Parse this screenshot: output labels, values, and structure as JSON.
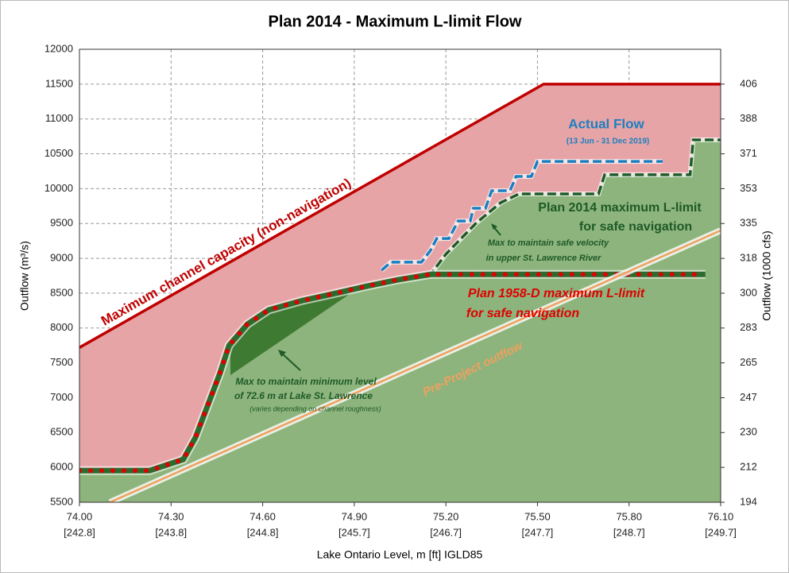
{
  "chart_data": {
    "type": "line",
    "title": "Plan 2014 - Maximum L-limit Flow",
    "x_label": "Lake Ontario Level, m [ft] IGLD85",
    "y_label": "Outflow (m³/s)",
    "y2_label": "Outflow (1000 cfs)",
    "xlim": [
      74.0,
      76.1
    ],
    "ylim": [
      5500,
      12000
    ],
    "y2lim": [
      194.23,
      423.78
    ],
    "xticks": [
      {
        "value": 74.0,
        "label": "74.00"
      },
      {
        "value": 74.3,
        "label": "74.30"
      },
      {
        "value": 74.6,
        "label": "74.60"
      },
      {
        "value": 74.9,
        "label": "74.90"
      },
      {
        "value": 75.2,
        "label": "75.20"
      },
      {
        "value": 75.5,
        "label": "75.50"
      },
      {
        "value": 75.8,
        "label": "75.80"
      },
      {
        "value": 76.1,
        "label": "76.10"
      }
    ],
    "xticks_ft": [
      "[242.8]",
      "[243.8]",
      "[244.8]",
      "[245.7]",
      "[246.7]",
      "[247.7]",
      "[248.7]",
      "[249.7]"
    ],
    "yticks": [
      5500,
      6000,
      6500,
      7000,
      7500,
      8000,
      8500,
      9000,
      9500,
      10000,
      10500,
      11000,
      11500,
      12000
    ],
    "y2ticks": [
      {
        "value": 194.23,
        "label": "194"
      },
      {
        "value": 211.89,
        "label": "212"
      },
      {
        "value": 229.55,
        "label": "230"
      },
      {
        "value": 247.2,
        "label": "247"
      },
      {
        "value": 264.86,
        "label": "265"
      },
      {
        "value": 282.52,
        "label": "283"
      },
      {
        "value": 300.17,
        "label": "300"
      },
      {
        "value": 317.83,
        "label": "318"
      },
      {
        "value": 335.49,
        "label": "335"
      },
      {
        "value": 353.15,
        "label": "353"
      },
      {
        "value": 370.8,
        "label": "371"
      },
      {
        "value": 388.46,
        "label": "388"
      },
      {
        "value": 406.12,
        "label": "406"
      }
    ],
    "grid": true,
    "series": [
      {
        "name": "Maximum channel capacity (non-navigation)",
        "color": "#c00000",
        "fill": "#e6a4a6",
        "style": "solid",
        "x": [
          74.0,
          75.52,
          76.1
        ],
        "values": [
          7720,
          11500,
          11500
        ]
      },
      {
        "name": "Plan 2014 maximum L-limit",
        "color": "#1e5a28",
        "fill": "#8db47c",
        "style": "dashed",
        "x": [
          74.0,
          74.23,
          74.34,
          74.38,
          74.42,
          74.46,
          74.49,
          74.55,
          74.62,
          74.73,
          74.83,
          74.94,
          75.04,
          75.15,
          75.2,
          75.3,
          75.38,
          75.44,
          75.7,
          75.72,
          76.0,
          76.01,
          76.1
        ],
        "values": [
          5955,
          5955,
          6115,
          6430,
          6890,
          7350,
          7750,
          8055,
          8260,
          8395,
          8490,
          8600,
          8690,
          8770,
          9060,
          9510,
          9800,
          9925,
          9925,
          10200,
          10200,
          10700,
          10700
        ]
      },
      {
        "name": "Plan 1958-D maximum L-limit",
        "color": "#e00000",
        "fill": "#2d6a2e",
        "style": "dotted",
        "x": [
          74.0,
          74.23,
          74.34,
          74.38,
          74.42,
          74.46,
          74.49,
          74.55,
          74.62,
          74.73,
          74.83,
          74.94,
          75.04,
          75.15,
          76.05
        ],
        "values": [
          5955,
          5955,
          6115,
          6430,
          6890,
          7350,
          7750,
          8055,
          8260,
          8395,
          8490,
          8600,
          8690,
          8770,
          8770
        ]
      },
      {
        "name": "Actual Flow",
        "color": "#1a7fc1",
        "style": "dashed",
        "x": [
          74.99,
          75.02,
          75.12,
          75.15,
          75.17,
          75.21,
          75.24,
          75.28,
          75.29,
          75.33,
          75.35,
          75.41,
          75.43,
          75.48,
          75.5,
          75.91
        ],
        "values": [
          8830,
          8945,
          8945,
          9115,
          9285,
          9285,
          9535,
          9535,
          9720,
          9720,
          9970,
          9970,
          10175,
          10175,
          10390,
          10390
        ]
      },
      {
        "name": "Pre-Project outflow",
        "color": "#f0a060",
        "style": "solid",
        "x": [
          74.1,
          76.1
        ],
        "values": [
          5500,
          9400
        ]
      }
    ],
    "annotations": [
      "(13 Jun - 31 Dec 2019)",
      "for safe navigation",
      "Max to maintain safe velocity",
      "in upper St. Lawrence River",
      "for safe navigation",
      "Max to maintain minimum level",
      "of 72.6 m at Lake St. Lawrence",
      "(varies depending on channel roughness)"
    ]
  }
}
